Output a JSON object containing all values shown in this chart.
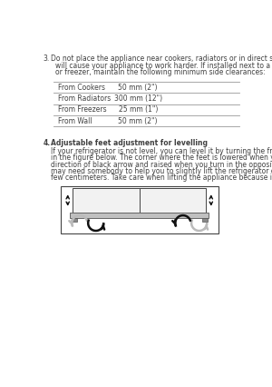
{
  "bg_color": "#ffffff",
  "text_color": "#404040",
  "section3_number": "3.",
  "section3_intro_line1": "Do not place the appliance near cookers, radiators or in direct sunlight as this",
  "section3_intro_line2": "will cause your appliance to work harder. If installed next to a source of heat",
  "section3_intro_line3": "or freezer, maintain the following minimum side clearances:",
  "table_rows": [
    {
      "label": "From Cookers",
      "value": "50 mm (2\")"
    },
    {
      "label": "From Radiators",
      "value": "300 mm (12\")"
    },
    {
      "label": "From Freezers",
      "value": "25 mm (1\")"
    },
    {
      "label": "From Wall",
      "value": "50 mm (2\")"
    }
  ],
  "section4_number": "4.",
  "section4_title": "Adjustable feet adjustment for levelling",
  "section4_body_lines": [
    "If your refrigerator is not level, you can level it by turning the front feet as illustrated",
    "in the figure below. The corner where the feet is lowered when you turn in the",
    "direction of black arrow and raised when you turn in the opposite direction. You",
    "may need somebody to help you to slightly lift the refrigerator off the floor for a",
    "few centimeters. Take care when lifting the appliance because it is very heavy."
  ],
  "font_size_body": 5.5,
  "table_line_color": "#999999",
  "fig_box_color": "#444444",
  "fridge_body_color": "#f2f2f2",
  "fridge_bar_color": "#c0c0c0",
  "arrow_black": "#111111",
  "arrow_gray": "#bbbbbb"
}
